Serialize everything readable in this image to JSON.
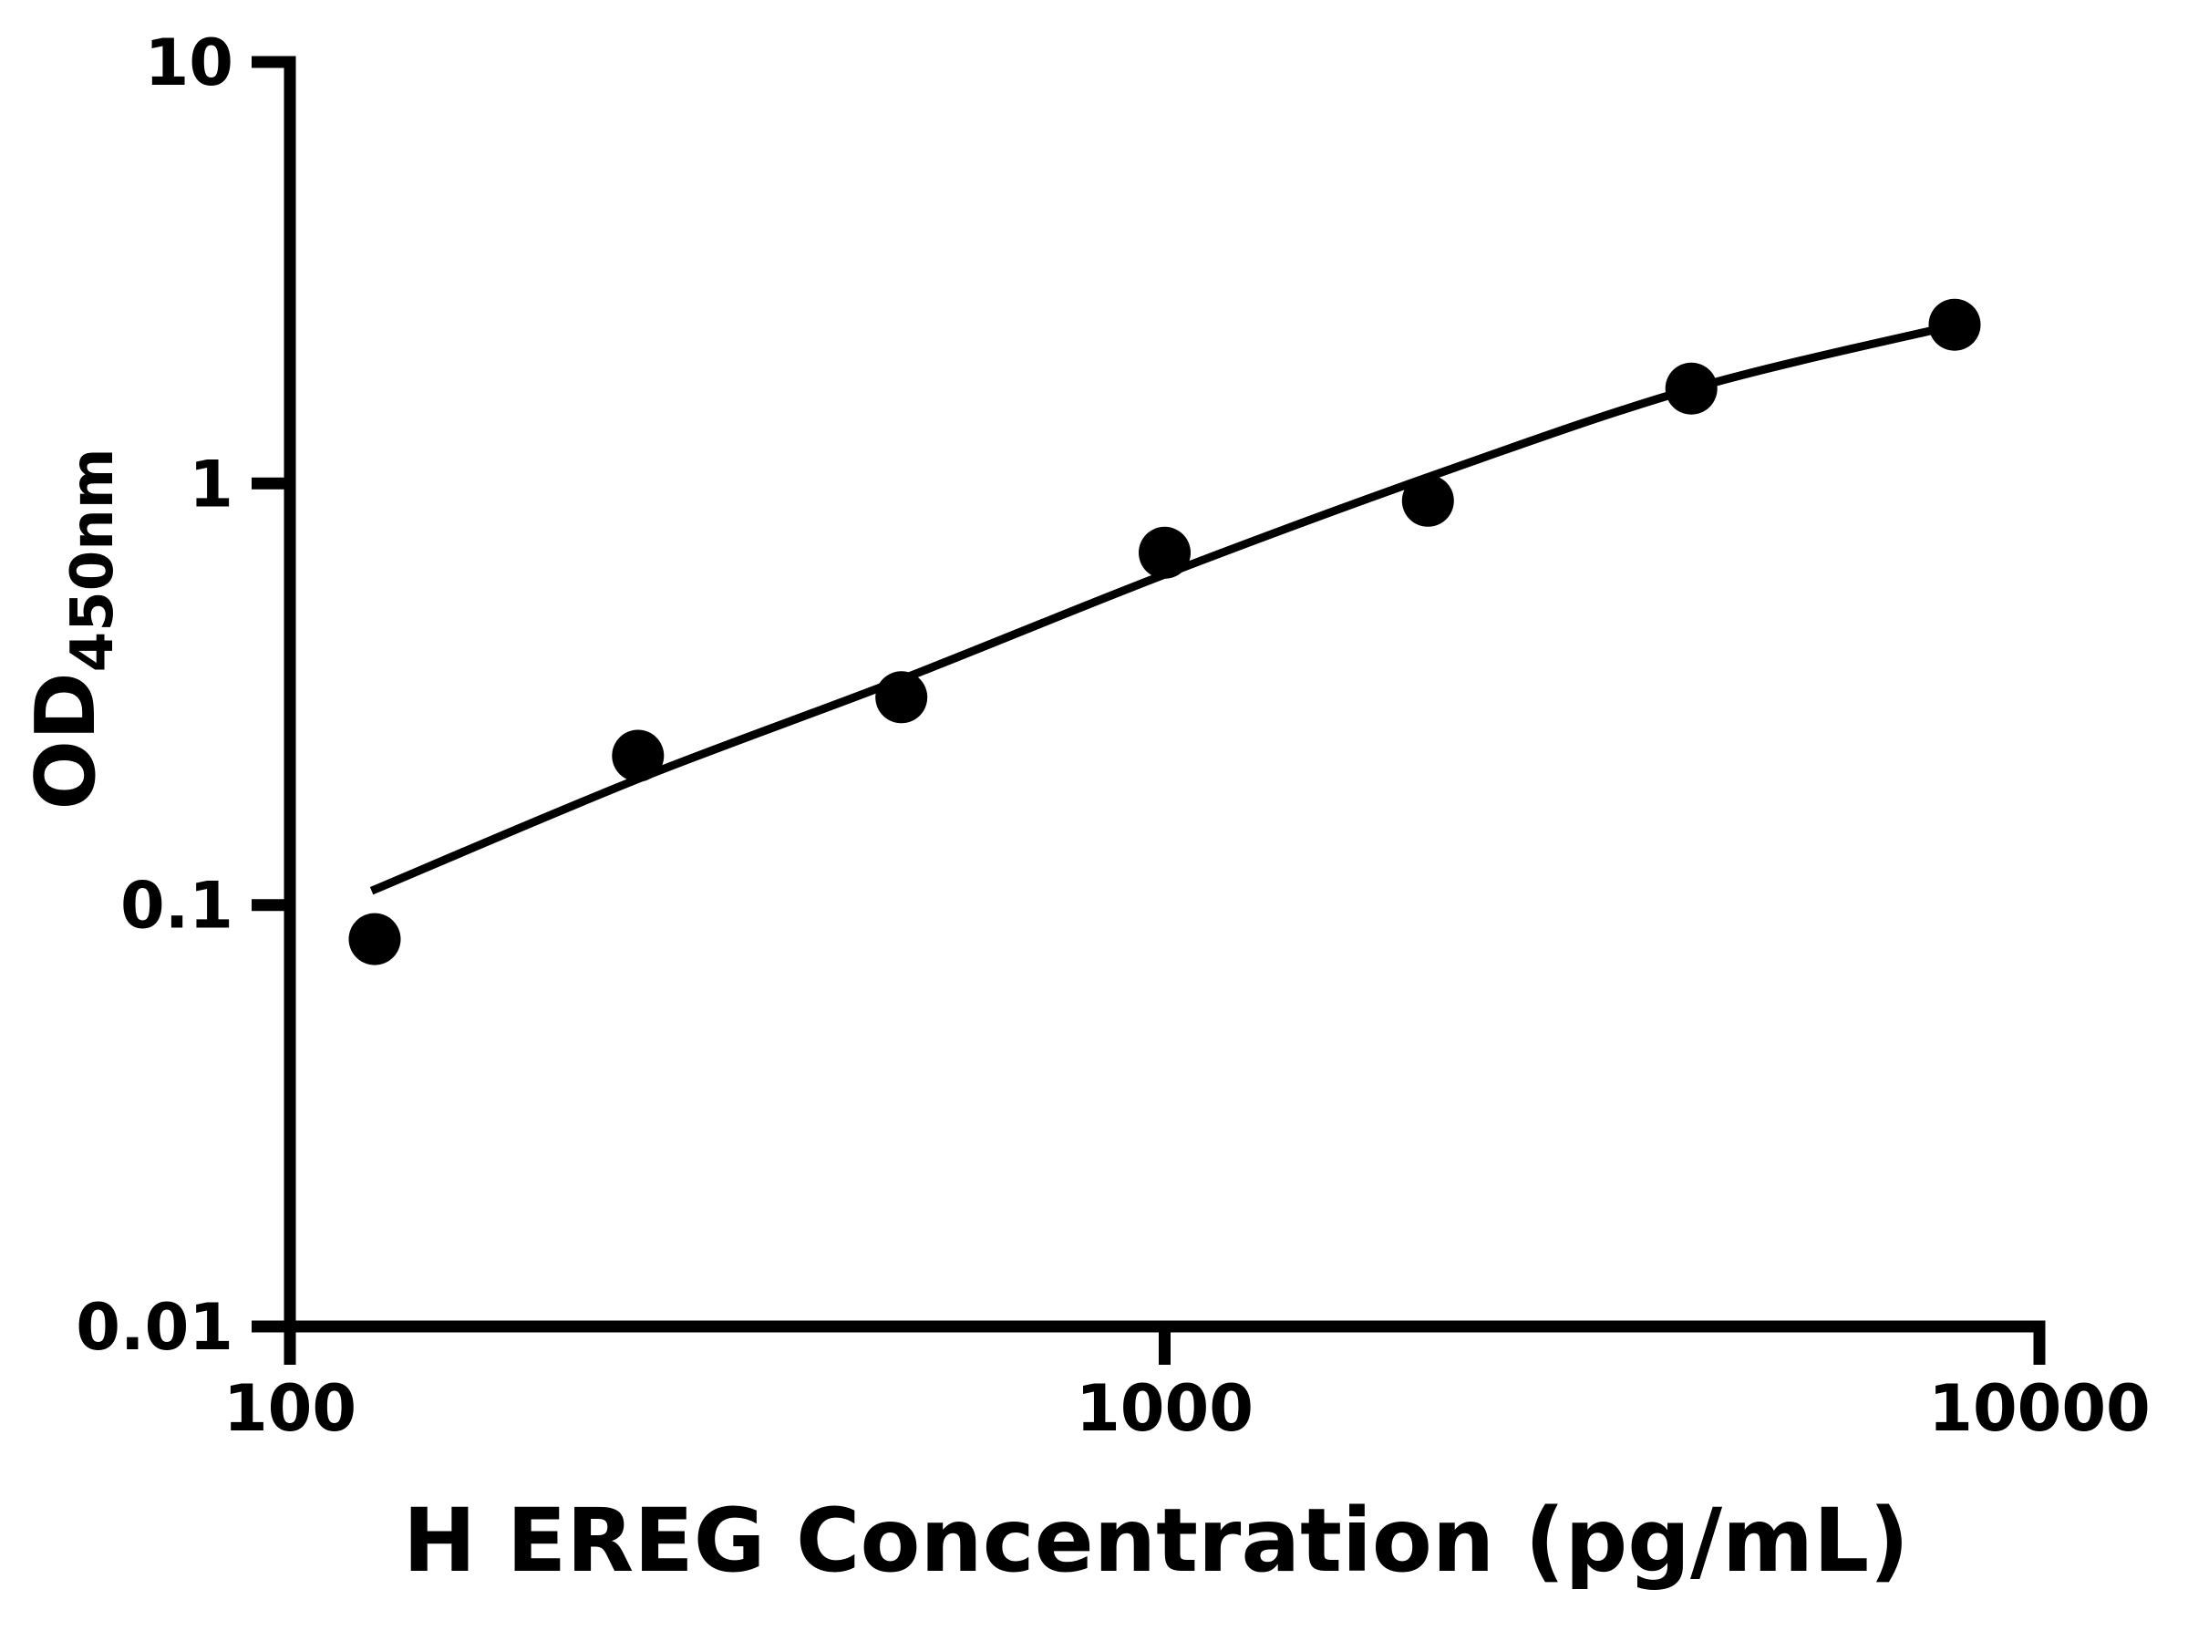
{
  "figure": {
    "background_color": "#ffffff",
    "foreground_color": "#000000"
  },
  "chart_data": {
    "type": "scatter",
    "title": "",
    "xlabel": "H EREG Concentration (pg/mL)",
    "ylabel": "OD450nm",
    "ylabel_main": "OD",
    "ylabel_subscript": "450nm",
    "x_scale": "log",
    "y_scale": "log",
    "xlim": [
      100,
      10000
    ],
    "ylim": [
      0.01,
      10
    ],
    "grid": false,
    "legend": false,
    "x_tick_values": [
      100,
      1000,
      10000
    ],
    "x_tick_labels": [
      "100",
      "1000",
      "10000"
    ],
    "y_tick_values": [
      0.01,
      0.1,
      1,
      10
    ],
    "y_tick_labels": [
      "0.01",
      "0.1",
      "1",
      "10"
    ],
    "series": [
      {
        "name": "H EREG standard points",
        "marker": "filled-circle",
        "color": "#000000",
        "x": [
          125,
          250,
          500,
          1000,
          2000,
          4000,
          8000
        ],
        "y": [
          0.083,
          0.226,
          0.311,
          0.685,
          0.91,
          1.68,
          2.38
        ]
      }
    ],
    "fit_curve": {
      "name": "standard curve fit",
      "color": "#000000",
      "x": [
        124,
        250,
        500,
        1000,
        2000,
        4000,
        8000
      ],
      "y": [
        0.108,
        0.199,
        0.343,
        0.608,
        1.035,
        1.677,
        2.375
      ]
    }
  }
}
